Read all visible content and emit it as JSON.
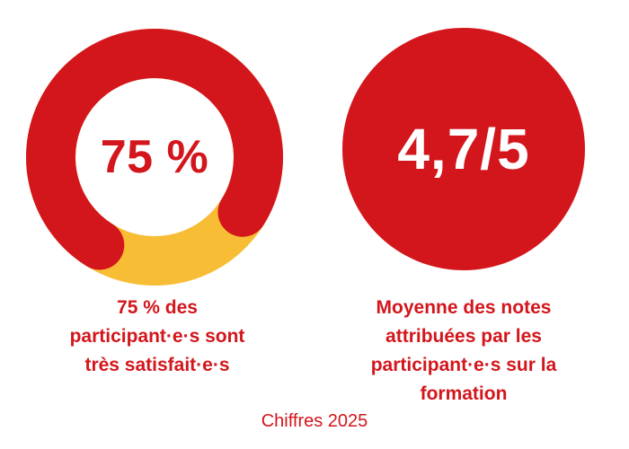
{
  "colors": {
    "red": "#d3161c",
    "yellow": "#f7bd34",
    "white": "#ffffff"
  },
  "chart_data": [
    {
      "type": "pie",
      "variant": "donut",
      "title": "75 %",
      "series": [
        {
          "value": 75,
          "color": "#d3161c"
        },
        {
          "value": 25,
          "color": "#f7bd34"
        }
      ],
      "caption_lines": [
        "75 % des",
        "participant·e·s sont",
        "très satisfait·e·s"
      ]
    },
    {
      "type": "other",
      "value_text": "4,7/5",
      "value": 4.7,
      "max": 5,
      "caption_lines": [
        "Moyenne des notes",
        "attribuées par les",
        "participant·e·s sur la",
        "formation"
      ]
    }
  ],
  "footer": "Chiffres 2025"
}
